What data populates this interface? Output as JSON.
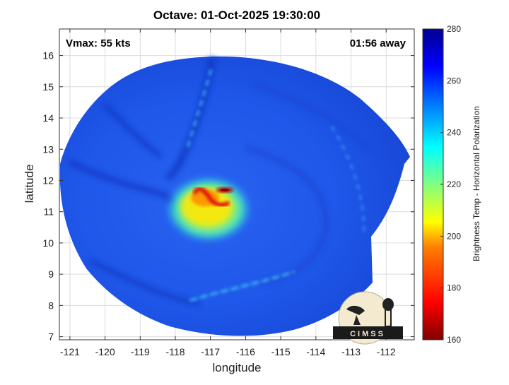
{
  "title": "Octave: 01-Oct-2025 19:30:00",
  "vmax_label": "Vmax: 55 kts",
  "time_away_label": "01:56 away",
  "axes": {
    "xlabel": "longitude",
    "ylabel": "latitude",
    "xlim": [
      -121.3,
      -111.2
    ],
    "ylim": [
      6.9,
      16.85
    ],
    "xticks": [
      -121,
      -120,
      -119,
      -118,
      -117,
      -116,
      -115,
      -114,
      -113,
      -112
    ],
    "yticks": [
      7,
      8,
      9,
      10,
      11,
      12,
      13,
      14,
      15,
      16
    ],
    "grid": true
  },
  "colorbar": {
    "label": "Brightness Temp - Horizontal Polarization",
    "min": 160,
    "max": 280,
    "ticks": [
      160,
      180,
      200,
      220,
      240,
      260,
      280
    ],
    "colormap": "jet"
  },
  "storm_center": {
    "lon": -116.9,
    "lat": 11.3
  },
  "logo_text": "CIMSS",
  "colors": {
    "background_blue": "#1e56e8",
    "cold_core": "#d01010",
    "logo_cream": "#f3ead0"
  }
}
